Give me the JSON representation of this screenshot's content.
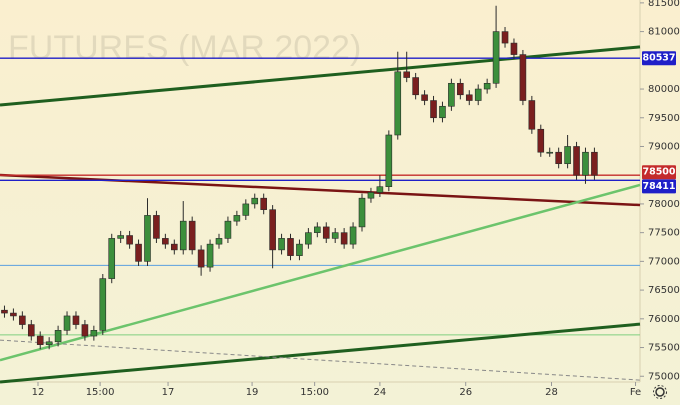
{
  "chart_data": {
    "type": "candlestick",
    "title": "FUTURES (MAR 2022)",
    "xlim": [
      -0.5,
      71.1
    ],
    "ylim": [
      74900,
      81550
    ],
    "xticks": [
      {
        "value": 3.75,
        "label": "12"
      },
      {
        "value": 10.7,
        "label": "15:00"
      },
      {
        "value": 18.3,
        "label": "17"
      },
      {
        "value": 27.7,
        "label": "19"
      },
      {
        "value": 34.7,
        "label": "15:00"
      },
      {
        "value": 42,
        "label": "24"
      },
      {
        "value": 51.6,
        "label": "26"
      },
      {
        "value": 61.2,
        "label": "28"
      },
      {
        "value": 70.6,
        "label": "Fe"
      }
    ],
    "yticks": [
      75000,
      75500,
      76000,
      76500,
      77000,
      77500,
      78000,
      79000,
      79500,
      80000,
      81000,
      81500
    ],
    "up_color": "#3c8f3c",
    "down_color": "#7a1f1f",
    "open": [
      76150,
      76100,
      76050,
      75900,
      75700,
      75550,
      75600,
      75800,
      76050,
      75900,
      75700,
      75800,
      76700,
      77400,
      77450,
      77300,
      77000,
      77800,
      77400,
      77300,
      77200,
      77700,
      77200,
      76900,
      77300,
      77400,
      77700,
      77800,
      78000,
      78100,
      77900,
      77200,
      77400,
      77100,
      77300,
      77500,
      77600,
      77400,
      77500,
      77300,
      77600,
      78100,
      78200,
      78300,
      79200,
      80300,
      80200,
      79900,
      79800,
      79500,
      79700,
      80100,
      79900,
      79800,
      80000,
      80100,
      81000,
      80800,
      80600,
      79800,
      79300,
      78900,
      78900,
      78700,
      79000,
      78500,
      78900
    ],
    "high": [
      76230,
      76180,
      76130,
      75980,
      75780,
      75680,
      75880,
      76130,
      76130,
      75980,
      75880,
      76780,
      77480,
      77530,
      77530,
      77380,
      78100,
      77880,
      77480,
      77380,
      78050,
      77780,
      77280,
      77380,
      77480,
      77780,
      77880,
      78080,
      78180,
      78180,
      77980,
      77480,
      77480,
      77380,
      77580,
      77680,
      77680,
      77580,
      77580,
      77680,
      78180,
      78280,
      78500,
      79280,
      80650,
      80650,
      80280,
      79980,
      79880,
      79780,
      80180,
      80180,
      79980,
      80080,
      80180,
      81450,
      81080,
      80880,
      80680,
      79880,
      79380,
      78980,
      78980,
      79200,
      79080,
      78980,
      78980
    ],
    "low": [
      76020,
      75970,
      75820,
      75620,
      75470,
      75470,
      75520,
      75720,
      75820,
      75620,
      75620,
      75720,
      76620,
      77320,
      77220,
      76920,
      76920,
      77320,
      77220,
      77120,
      77120,
      77120,
      76750,
      76820,
      77220,
      77320,
      77620,
      77720,
      77920,
      77820,
      76880,
      77120,
      77020,
      77020,
      77220,
      77420,
      77320,
      77320,
      77220,
      77220,
      77520,
      78020,
      78120,
      78220,
      79120,
      80120,
      79820,
      79720,
      79420,
      79420,
      79620,
      79820,
      79720,
      79720,
      79920,
      80020,
      80720,
      80520,
      79720,
      79220,
      78820,
      78820,
      78620,
      78620,
      78420,
      78350,
      78420
    ],
    "close": [
      76100,
      76050,
      75900,
      75700,
      75550,
      75600,
      75800,
      76050,
      75900,
      75700,
      75800,
      76700,
      77400,
      77450,
      77300,
      77000,
      77800,
      77400,
      77300,
      77200,
      77700,
      77200,
      76900,
      77300,
      77400,
      77700,
      77800,
      78000,
      78100,
      77900,
      77200,
      77400,
      77100,
      77300,
      77500,
      77600,
      77400,
      77500,
      77300,
      77600,
      78100,
      78200,
      78300,
      79200,
      80300,
      80200,
      79900,
      79800,
      79500,
      79700,
      80100,
      79900,
      79800,
      80000,
      80100,
      81000,
      80800,
      80600,
      79800,
      79300,
      78900,
      78900,
      78700,
      79000,
      78500,
      78900,
      78500
    ],
    "levels": [
      {
        "value": 80537,
        "color": "#1f1fc8"
      },
      {
        "value": 78500,
        "color": "#c42b2b"
      },
      {
        "value": 78411,
        "color": "#1f1fc8"
      }
    ],
    "guides": [
      {
        "value": 76930,
        "color": "#5aa0e0"
      },
      {
        "value": 75720,
        "color": "#7fd07f"
      }
    ],
    "trendlines": [
      {
        "values": [
          79723,
          80734
        ],
        "color": "#1f5f1f",
        "width": 3
      },
      {
        "values": [
          78504,
          77981
        ],
        "color": "#7a1414",
        "width": 2.5
      },
      {
        "values": [
          75281,
          78330
        ],
        "color": "#6cc46c",
        "width": 2.5
      },
      {
        "values": [
          74900,
          75908
        ],
        "color": "#1f5f1f",
        "width": 3
      },
      {
        "values": [
          75630,
          74933
        ],
        "color": "#888888",
        "width": 1,
        "dashed": true
      }
    ]
  }
}
